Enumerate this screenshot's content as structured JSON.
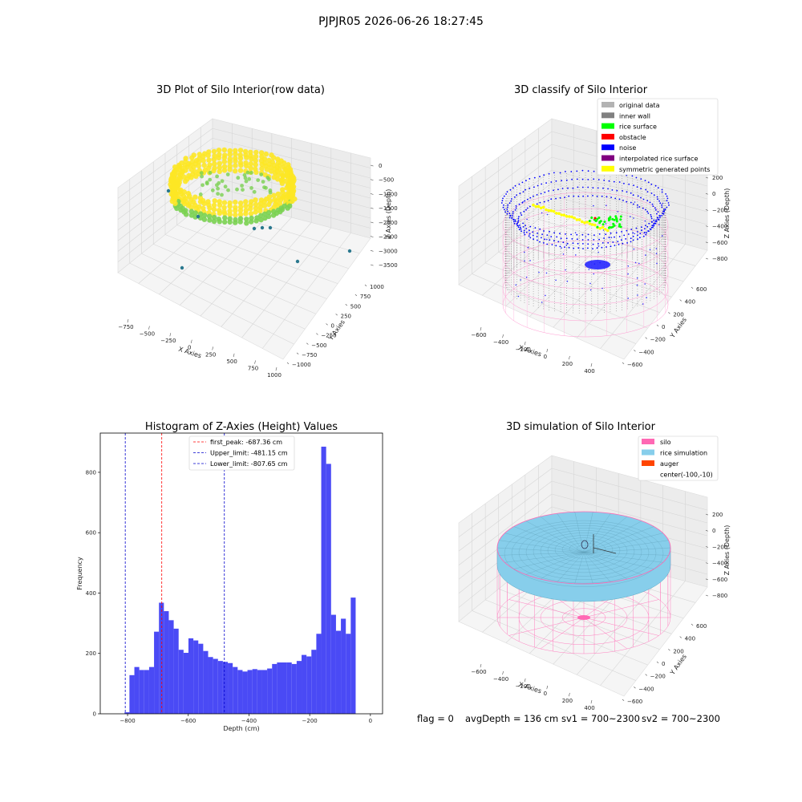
{
  "suptitle": "PJPJR05 2026-06-26 18:27:45",
  "status": {
    "flag": "flag = 0",
    "avg_depth": "avgDepth = 136 cm",
    "sv1": "sv1 = 700~2300",
    "sv2": "sv2 = 700~2300"
  },
  "chart_data": [
    {
      "type": "scatter",
      "title": "3D Plot of Silo Interior(row data)",
      "xlabel": "X Axies",
      "ylabel": "Y Axies",
      "zlabel": "Z Axies (Depth)",
      "x_ticks": [
        "−750",
        "−500",
        "−250",
        "0",
        "250",
        "500",
        "750",
        "1000"
      ],
      "y_ticks": [
        "−1000",
        "−750",
        "−500",
        "−250",
        "0",
        "250",
        "500",
        "750",
        "1000"
      ],
      "z_ticks": [
        "0",
        "−500",
        "−1000",
        "−1500",
        "−2000",
        "−2500",
        "−3000",
        "−3500"
      ],
      "colors": {
        "high": "#fde725",
        "mid": "#7ad151",
        "low": "#2a788e"
      }
    },
    {
      "type": "scatter",
      "title": "3D classify of Silo Interior",
      "xlabel": "X Axies",
      "ylabel": "Y Axies",
      "zlabel": "Z Axies (Depth)",
      "x_ticks": [
        "−600",
        "−400",
        "−200",
        "0",
        "200",
        "400"
      ],
      "y_ticks": [
        "−600",
        "−400",
        "−200",
        "0",
        "200",
        "400",
        "600"
      ],
      "z_ticks": [
        "200",
        "0",
        "−200",
        "−400",
        "−600",
        "−800"
      ],
      "legend": [
        {
          "label": "original data",
          "color": "#b3b3b3"
        },
        {
          "label": "inner wall",
          "color": "#808080"
        },
        {
          "label": "rice surface",
          "color": "#00ff00"
        },
        {
          "label": "obstacle",
          "color": "#ff0000"
        },
        {
          "label": "noise",
          "color": "#0000ff"
        },
        {
          "label": "interpolated rice surface",
          "color": "#800080"
        },
        {
          "label": "symmetric generated points",
          "color": "#ffff00"
        }
      ]
    },
    {
      "type": "bar",
      "title": "Histogram of Z-Axies (Height) Values",
      "xlabel": "Depth (cm)",
      "ylabel": "Frequency",
      "xlim": [
        -890,
        40
      ],
      "ylim": [
        0,
        930
      ],
      "x_ticks": [
        {
          "value": -800,
          "label": "−800"
        },
        {
          "value": -600,
          "label": "−600"
        },
        {
          "value": -400,
          "label": "−400"
        },
        {
          "value": -200,
          "label": "−200"
        },
        {
          "value": 0,
          "label": "0"
        }
      ],
      "y_ticks": [
        {
          "value": 0,
          "label": "0"
        },
        {
          "value": 200,
          "label": "200"
        },
        {
          "value": 400,
          "label": "400"
        },
        {
          "value": 600,
          "label": "600"
        },
        {
          "value": 800,
          "label": "800"
        }
      ],
      "bin_start": -810,
      "bin_width": 16.2,
      "values": [
        5,
        128,
        155,
        145,
        145,
        155,
        272,
        368,
        340,
        310,
        282,
        212,
        202,
        250,
        243,
        232,
        208,
        188,
        182,
        175,
        172,
        168,
        155,
        145,
        140,
        145,
        148,
        145,
        145,
        150,
        165,
        170,
        170,
        170,
        165,
        175,
        195,
        190,
        212,
        265,
        885,
        828,
        328,
        275,
        315,
        265,
        385
      ],
      "bar_color": "#4a4af5",
      "lines": [
        {
          "value": -687.36,
          "color": "#ff0000",
          "label": "first_peak: -687.36 cm"
        },
        {
          "value": -481.15,
          "color": "#0000cc",
          "label": "Upper_limit: -481.15 cm"
        },
        {
          "value": -807.65,
          "color": "#0000cc",
          "label": "Lower_limit: -807.65 cm"
        }
      ],
      "legend_position": "upper-center"
    },
    {
      "type": "scatter",
      "title": "3D simulation of Silo Interior",
      "xlabel": "X Axies",
      "ylabel": "Y Axies",
      "zlabel": "Z Axies (Depth)",
      "x_ticks": [
        "−600",
        "−400",
        "−200",
        "0",
        "200",
        "400"
      ],
      "y_ticks": [
        "−600",
        "−400",
        "−200",
        "0",
        "200",
        "400",
        "600"
      ],
      "z_ticks": [
        "200",
        "0",
        "−200",
        "−400",
        "−600",
        "−800"
      ],
      "legend": [
        {
          "label": "silo",
          "color": "#ff69b4"
        },
        {
          "label": "rice simulation",
          "color": "#87ceeb"
        },
        {
          "label": "auger",
          "color": "#ff4500"
        },
        {
          "label": "center(-100,-10)",
          "color": ""
        }
      ]
    }
  ]
}
